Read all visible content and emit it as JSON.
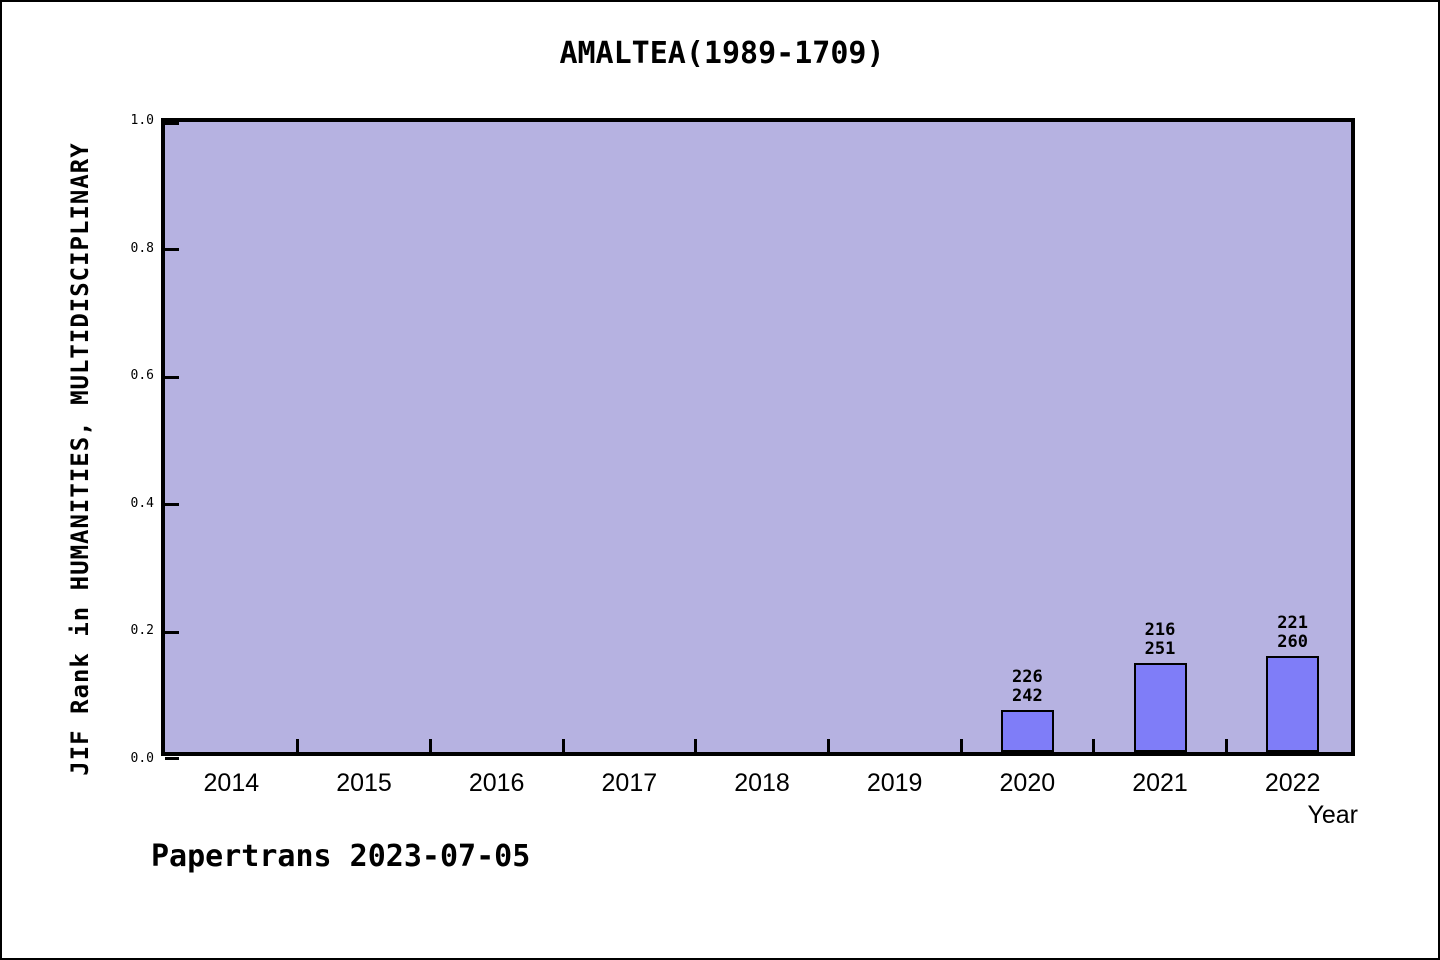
{
  "chart_data": {
    "type": "bar",
    "title": "AMALTEA(1989-1709)",
    "xlabel": "Year",
    "ylabel": "JIF Rank in HUMANITIES, MULTIDISCIPLINARY",
    "categories": [
      "2014",
      "2015",
      "2016",
      "2017",
      "2018",
      "2019",
      "2020",
      "2021",
      "2022"
    ],
    "yticks": [
      0.0,
      0.2,
      0.4,
      0.6,
      0.8,
      1.0
    ],
    "ylim": [
      0,
      1
    ],
    "grid": false,
    "legend": "none",
    "bars": [
      {
        "category": "2020",
        "rank": "226",
        "total": "242",
        "value": 0.0661
      },
      {
        "category": "2021",
        "rank": "216",
        "total": "251",
        "value": 0.1394
      },
      {
        "category": "2022",
        "rank": "221",
        "total": "260",
        "value": 0.15
      }
    ],
    "annotation": "Papertrans 2023-07-05",
    "colors": {
      "plot_bg": "#b6b2e1",
      "bar_fill": "#7f7df8",
      "frame": "#000000",
      "text": "#000000",
      "page_bg": "#ffffff"
    }
  }
}
